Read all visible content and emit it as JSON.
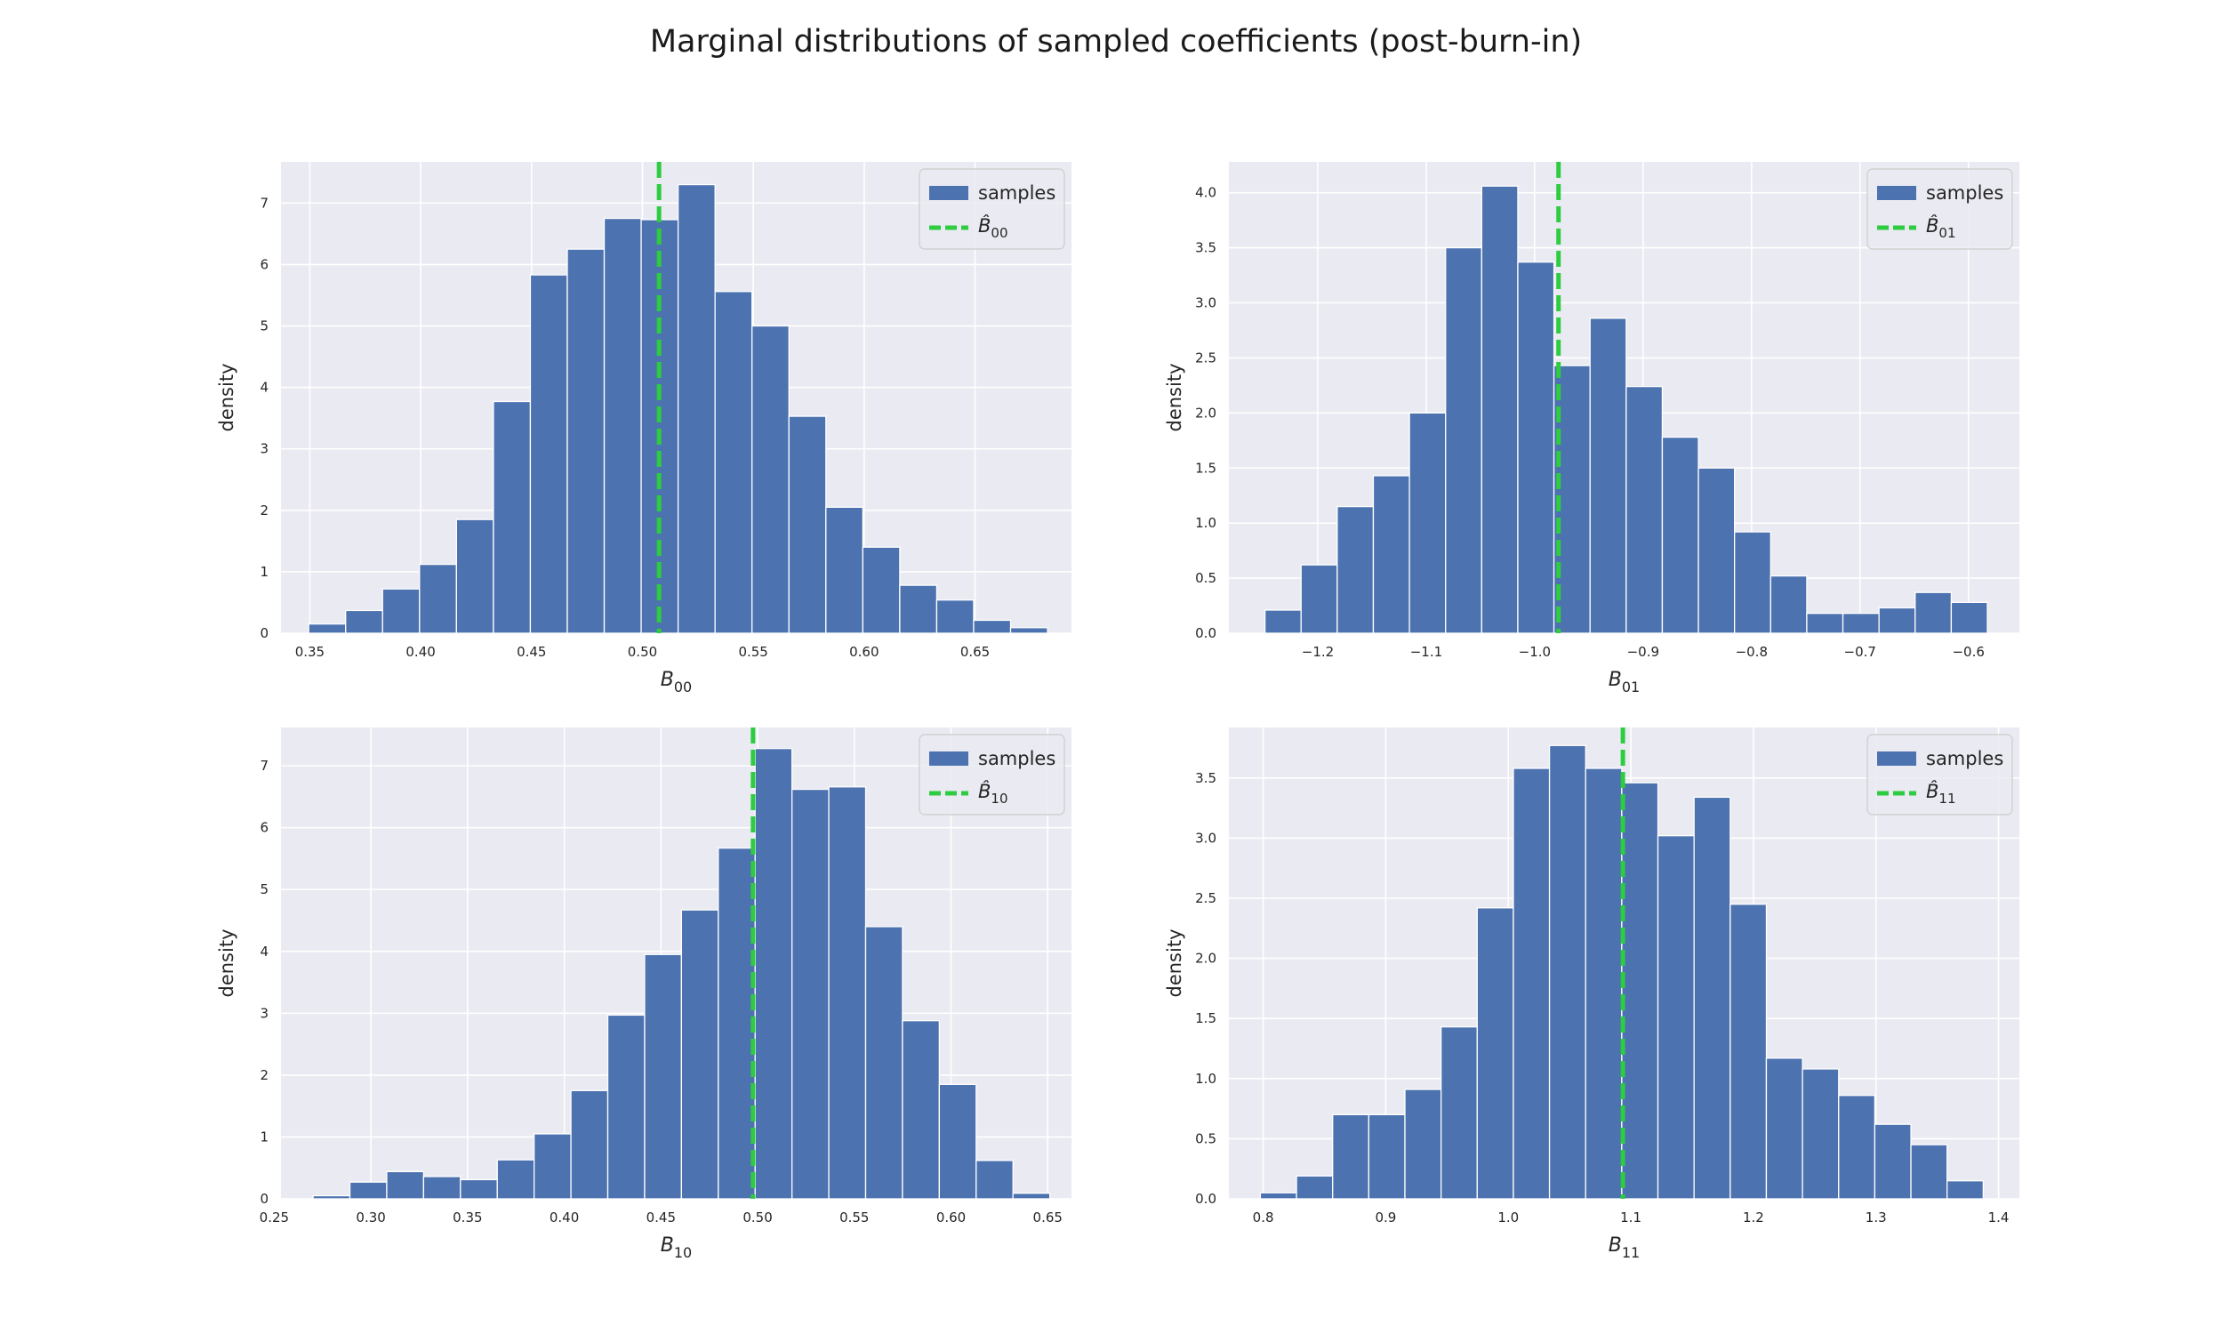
{
  "figure": {
    "title": "Marginal distributions of sampled coefficients (post-burn-in)",
    "background": "#ffffff",
    "axes_background": "#eaeaf2",
    "grid_color": "#ffffff",
    "bar_color": "#4c72b0",
    "line_color": "#2ecc40",
    "layout": "2x2"
  },
  "chart_data": [
    {
      "type": "bar",
      "subtype": "histogram",
      "id": "b00",
      "xlabel": "B",
      "xlabel_sub": "00",
      "ylabel": "density",
      "xlim": [
        0.337,
        0.6935
      ],
      "ylim": [
        0,
        7.67
      ],
      "xticks": [
        0.35,
        0.4,
        0.45,
        0.5,
        0.55,
        0.6,
        0.65
      ],
      "xtick_labels": [
        "0.35",
        "0.40",
        "0.45",
        "0.50",
        "0.55",
        "0.60",
        "0.65"
      ],
      "yticks": [
        0,
        1,
        2,
        3,
        4,
        5,
        6,
        7
      ],
      "ytick_labels": [
        "0",
        "1",
        "2",
        "3",
        "4",
        "5",
        "6",
        "7"
      ],
      "bin_start": 0.3495,
      "bin_width": 0.01666,
      "values": [
        0.15,
        0.37,
        0.72,
        1.12,
        1.85,
        3.77,
        5.83,
        6.25,
        6.75,
        6.73,
        7.3,
        5.56,
        5.0,
        3.53,
        2.05,
        1.4,
        0.78,
        0.54,
        0.21,
        0.09
      ],
      "estimate": 0.5075,
      "legend": {
        "samples": "samples",
        "estimate_label": "B̂",
        "estimate_sub": "00",
        "placement": "upper right"
      }
    },
    {
      "type": "bar",
      "subtype": "histogram",
      "id": "b01",
      "xlabel": "B",
      "xlabel_sub": "01",
      "ylabel": "density",
      "xlim": [
        -1.282,
        -0.553
      ],
      "ylim": [
        0,
        4.28
      ],
      "xticks": [
        -1.2,
        -1.1,
        -1.0,
        -0.9,
        -0.8,
        -0.7,
        -0.6
      ],
      "xtick_labels": [
        "−1.2",
        "−1.1",
        "−1.0",
        "−0.9",
        "−0.8",
        "−0.7",
        "−0.6"
      ],
      "yticks": [
        0,
        0.5,
        1.0,
        1.5,
        2.0,
        2.5,
        3.0,
        3.5,
        4.0
      ],
      "ytick_labels": [
        "0.0",
        "0.5",
        "1.0",
        "1.5",
        "2.0",
        "2.5",
        "3.0",
        "3.5",
        "4.0"
      ],
      "bin_start": -1.2487,
      "bin_width": 0.03331,
      "values": [
        0.21,
        0.62,
        1.15,
        1.43,
        2.0,
        3.5,
        4.06,
        3.37,
        2.43,
        2.86,
        2.24,
        1.78,
        1.5,
        0.92,
        0.52,
        0.18,
        0.18,
        0.23,
        0.37,
        0.28
      ],
      "estimate": -0.978,
      "legend": {
        "samples": "samples",
        "estimate_label": "B̂",
        "estimate_sub": "01",
        "placement": "upper right"
      }
    },
    {
      "type": "bar",
      "subtype": "histogram",
      "id": "b10",
      "xlabel": "B",
      "xlabel_sub": "10",
      "ylabel": "density",
      "xlim": [
        0.2535,
        0.6623
      ],
      "ylim": [
        0,
        7.62
      ],
      "xticks": [
        0.25,
        0.3,
        0.35,
        0.4,
        0.45,
        0.5,
        0.55,
        0.6,
        0.65
      ],
      "xtick_labels": [
        "0.25",
        "0.30",
        "0.35",
        "0.40",
        "0.45",
        "0.50",
        "0.55",
        "0.60",
        "0.65"
      ],
      "yticks": [
        0,
        1,
        2,
        3,
        4,
        5,
        6,
        7
      ],
      "ytick_labels": [
        "0",
        "1",
        "2",
        "3",
        "4",
        "5",
        "6",
        "7"
      ],
      "bin_start": 0.2701,
      "bin_width": 0.01905,
      "values": [
        0.05,
        0.27,
        0.44,
        0.36,
        0.31,
        0.63,
        1.05,
        1.75,
        2.97,
        3.95,
        4.67,
        5.67,
        7.28,
        6.62,
        6.66,
        4.4,
        2.88,
        1.85,
        0.62,
        0.09
      ],
      "estimate": 0.4976,
      "legend": {
        "samples": "samples",
        "estimate_label": "B̂",
        "estimate_sub": "10",
        "placement": "upper right"
      }
    },
    {
      "type": "bar",
      "subtype": "histogram",
      "id": "b11",
      "xlabel": "B",
      "xlabel_sub": "11",
      "ylabel": "density",
      "xlim": [
        0.772,
        1.417
      ],
      "ylim": [
        0,
        3.92
      ],
      "xticks": [
        0.8,
        0.9,
        1.0,
        1.1,
        1.2,
        1.3,
        1.4
      ],
      "xtick_labels": [
        "0.8",
        "0.9",
        "1.0",
        "1.1",
        "1.2",
        "1.3",
        "1.4"
      ],
      "yticks": [
        0,
        0.5,
        1.0,
        1.5,
        2.0,
        2.5,
        3.0,
        3.5
      ],
      "ytick_labels": [
        "0.0",
        "0.5",
        "1.0",
        "1.5",
        "2.0",
        "2.5",
        "3.0",
        "3.5"
      ],
      "bin_start": 0.7977,
      "bin_width": 0.02949,
      "values": [
        0.05,
        0.19,
        0.7,
        0.7,
        0.91,
        1.43,
        2.42,
        3.58,
        3.77,
        3.58,
        3.46,
        3.02,
        3.34,
        2.45,
        1.17,
        1.08,
        0.86,
        0.62,
        0.45,
        0.15
      ],
      "estimate": 1.0935,
      "legend": {
        "samples": "samples",
        "estimate_label": "B̂",
        "estimate_sub": "11",
        "placement": "upper right"
      }
    }
  ]
}
